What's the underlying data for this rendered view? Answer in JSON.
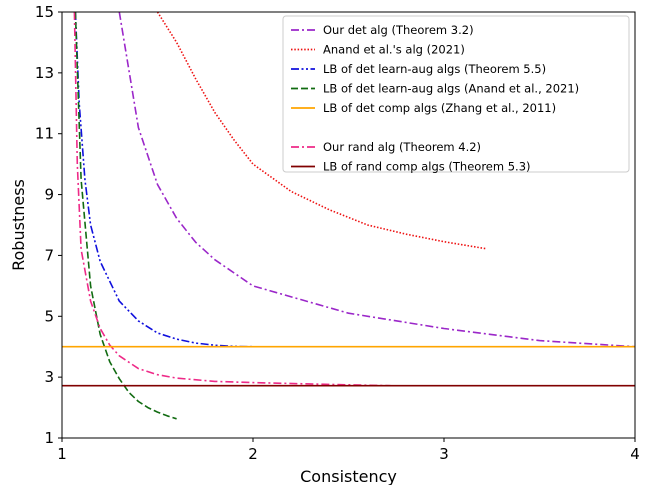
{
  "chart_data": {
    "type": "line",
    "xlabel": "Consistency",
    "ylabel": "Robustness",
    "xlim": [
      1,
      4
    ],
    "ylim": [
      1,
      15
    ],
    "xticks": [
      1,
      2,
      3,
      4
    ],
    "yticks": [
      1,
      3,
      5,
      7,
      9,
      11,
      13,
      15
    ],
    "grid": false,
    "legend_position": "top-right",
    "series": [
      {
        "name": "Our det alg (Theorem 3.2)",
        "color": "#9b27c9",
        "dash": "dashdot",
        "points": [
          [
            1.3,
            15.0
          ],
          [
            1.4,
            11.2
          ],
          [
            1.5,
            9.33
          ],
          [
            1.6,
            8.22
          ],
          [
            1.7,
            7.43
          ],
          [
            1.8,
            6.86
          ],
          [
            2.0,
            6.0
          ],
          [
            2.5,
            5.1
          ],
          [
            3.0,
            4.6
          ],
          [
            3.5,
            4.2
          ],
          [
            4.0,
            4.0
          ]
        ]
      },
      {
        "name": "Anand et al.'s alg (2021)",
        "color": "#ee1111",
        "dash": "dotted",
        "points": [
          [
            1.5,
            15.0
          ],
          [
            1.6,
            14.0
          ],
          [
            1.7,
            12.8
          ],
          [
            1.8,
            11.7
          ],
          [
            1.9,
            10.8
          ],
          [
            2.0,
            10.0
          ],
          [
            2.2,
            9.1
          ],
          [
            2.4,
            8.5
          ],
          [
            2.6,
            8.0
          ],
          [
            2.8,
            7.7
          ],
          [
            3.0,
            7.45
          ],
          [
            3.22,
            7.22
          ]
        ]
      },
      {
        "name": "LB of det learn-aug algs (Theorem 5.5)",
        "color": "#1010dd",
        "dash": "dashdotdot",
        "points": [
          [
            1.07,
            15.0
          ],
          [
            1.09,
            12.0
          ],
          [
            1.12,
            9.5
          ],
          [
            1.15,
            8.0
          ],
          [
            1.2,
            6.8
          ],
          [
            1.3,
            5.5
          ],
          [
            1.4,
            4.85
          ],
          [
            1.5,
            4.45
          ],
          [
            1.6,
            4.25
          ],
          [
            1.7,
            4.12
          ],
          [
            1.8,
            4.05
          ],
          [
            1.9,
            4.01
          ],
          [
            2.0,
            4.0
          ]
        ]
      },
      {
        "name": "LB of det learn-aug algs (Anand et al., 2021)",
        "color": "#116b11",
        "dash": "dashed",
        "points": [
          [
            1.07,
            15.0
          ],
          [
            1.1,
            9.5
          ],
          [
            1.15,
            6.0
          ],
          [
            1.2,
            4.4
          ],
          [
            1.25,
            3.5
          ],
          [
            1.3,
            2.95
          ],
          [
            1.35,
            2.5
          ],
          [
            1.4,
            2.2
          ],
          [
            1.45,
            2.0
          ],
          [
            1.5,
            1.85
          ],
          [
            1.55,
            1.73
          ],
          [
            1.6,
            1.63
          ]
        ]
      },
      {
        "name": "LB of det comp algs (Zhang et al., 2011)",
        "color": "#ffa500",
        "dash": "solid",
        "points": [
          [
            1.0,
            4.0
          ],
          [
            4.0,
            4.0
          ]
        ]
      },
      {
        "name": "Our rand alg (Theorem 4.2)",
        "color": "#ee2a88",
        "dash": "dashdot",
        "points": [
          [
            1.065,
            15.0
          ],
          [
            1.08,
            10.0
          ],
          [
            1.1,
            7.2
          ],
          [
            1.15,
            5.5
          ],
          [
            1.2,
            4.6
          ],
          [
            1.25,
            4.05
          ],
          [
            1.3,
            3.7
          ],
          [
            1.4,
            3.28
          ],
          [
            1.5,
            3.08
          ],
          [
            1.6,
            2.97
          ],
          [
            1.8,
            2.86
          ],
          [
            2.0,
            2.82
          ],
          [
            2.4,
            2.76
          ],
          [
            2.72,
            2.72
          ]
        ]
      },
      {
        "name": "LB of rand comp algs (Theorem 5.3)",
        "color": "#800000",
        "dash": "solid",
        "points": [
          [
            1.0,
            2.72
          ],
          [
            4.0,
            2.72
          ]
        ]
      }
    ]
  }
}
